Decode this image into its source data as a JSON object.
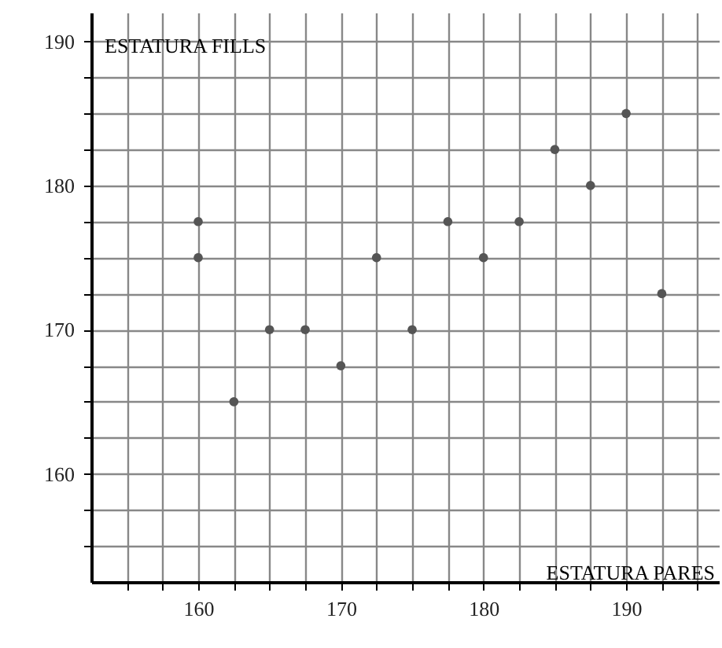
{
  "chart_data": {
    "type": "scatter",
    "xlabel": "ESTATURA PARES",
    "ylabel": "ESTATURA FILLS",
    "x": [
      160,
      160,
      162.5,
      165,
      167.5,
      170,
      172.5,
      175,
      177.5,
      180,
      182.5,
      185,
      187.5,
      190,
      192.5
    ],
    "series": [
      {
        "color": "#555555",
        "values": [
          177.5,
          175,
          165,
          170,
          170,
          167.5,
          175,
          170,
          177.5,
          175,
          177.5,
          182.5,
          180,
          185,
          172.5
        ]
      }
    ],
    "xlim": [
      152.5,
      196.5
    ],
    "ylim": [
      152.5,
      192
    ],
    "xticks": [
      {
        "value": 155,
        "label": null
      },
      {
        "value": 157.5,
        "label": null
      },
      160,
      {
        "value": 162.5,
        "label": null
      },
      {
        "value": 165,
        "label": null
      },
      {
        "value": 167.5,
        "label": null
      },
      170,
      {
        "value": 172.5,
        "label": null
      },
      {
        "value": 175,
        "label": null
      },
      {
        "value": 177.5,
        "label": null
      },
      180,
      {
        "value": 182.5,
        "label": null
      },
      {
        "value": 185,
        "label": null
      },
      {
        "value": 187.5,
        "label": null
      },
      190,
      {
        "value": 192.5,
        "label": null
      },
      {
        "value": 195,
        "label": null
      }
    ],
    "yticks": [
      {
        "value": 155,
        "label": null
      },
      {
        "value": 157.5,
        "label": null
      },
      160,
      {
        "value": 162.5,
        "label": null
      },
      {
        "value": 165,
        "label": null
      },
      {
        "value": 167.5,
        "label": null
      },
      170,
      {
        "value": 172.5,
        "label": null
      },
      {
        "value": 175,
        "label": null
      },
      {
        "value": 177.5,
        "label": null
      },
      180,
      {
        "value": 182.5,
        "label": null
      },
      {
        "value": 185,
        "label": null
      },
      {
        "value": 187.5,
        "label": null
      },
      190
    ],
    "grid": true,
    "marker": "circle"
  }
}
